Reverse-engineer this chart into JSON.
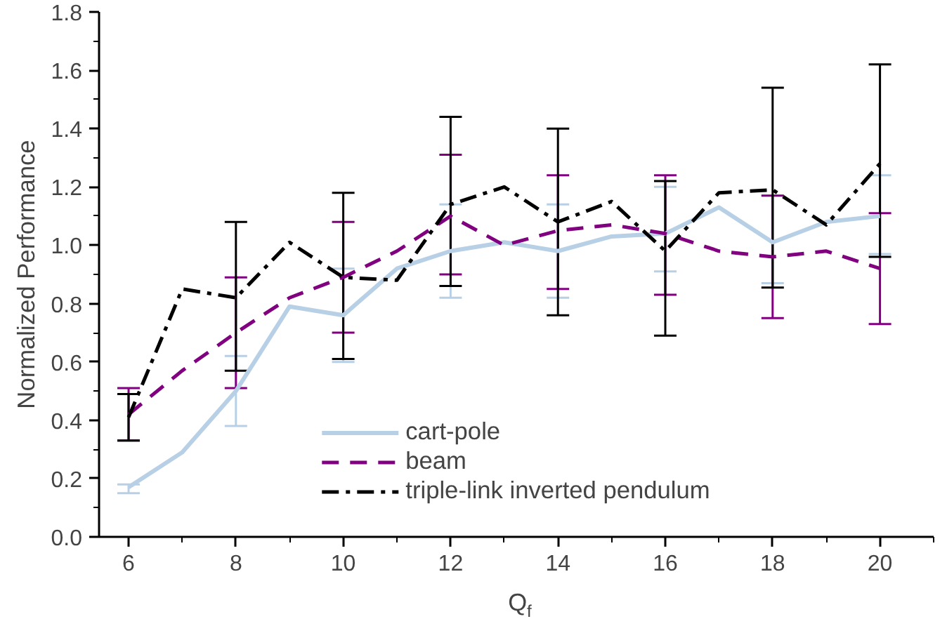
{
  "chart_data": {
    "type": "line",
    "xlabel": "Q$_{f}$",
    "ylabel": "Normalized Performance",
    "x": [
      6,
      7,
      8,
      9,
      10,
      11,
      12,
      13,
      14,
      15,
      16,
      17,
      18,
      19,
      20
    ],
    "xlim": [
      5.45,
      21.0
    ],
    "xticks": [
      6,
      8,
      10,
      12,
      14,
      16,
      18,
      20
    ],
    "ylim": [
      0,
      1.8
    ],
    "yticks": [
      {
        "value": 0,
        "label": "0.0"
      },
      {
        "value": 0.2,
        "label": "0.2"
      },
      {
        "value": 0.4,
        "label": "0.4"
      },
      {
        "value": 0.6,
        "label": "0.6"
      },
      {
        "value": 0.8,
        "label": "0.8"
      },
      {
        "value": 1.0,
        "label": "1.0"
      },
      {
        "value": 1.2,
        "label": "1.2"
      },
      {
        "value": 1.4,
        "label": "1.4"
      },
      {
        "value": 1.6,
        "label": "1.6"
      },
      {
        "value": 1.8,
        "label": "1.8"
      }
    ],
    "legend": "bottom",
    "grid": false,
    "series": [
      {
        "name": "cart-pole",
        "color": "#b8d0e6",
        "line_style": "solid",
        "values": [
          0.17,
          0.29,
          0.5,
          0.79,
          0.76,
          0.92,
          0.98,
          1.01,
          0.98,
          1.03,
          1.04,
          1.13,
          1.01,
          1.08,
          1.1
        ],
        "errors": [
          [
            0.15,
            0.18
          ],
          null,
          [
            0.38,
            0.62
          ],
          null,
          [
            0.6,
            0.92
          ],
          null,
          [
            0.82,
            1.14
          ],
          null,
          [
            0.82,
            1.14
          ],
          null,
          [
            0.91,
            1.2
          ],
          null,
          [
            0.87,
            1.17
          ],
          null,
          [
            0.97,
            1.24
          ]
        ]
      },
      {
        "name": "beam",
        "color": "#800080",
        "line_style": "dashed",
        "values": [
          0.42,
          0.57,
          0.7,
          0.82,
          0.89,
          0.98,
          1.1,
          1.0,
          1.05,
          1.07,
          1.04,
          0.98,
          0.96,
          0.98,
          0.92
        ],
        "errors": [
          [
            0.33,
            0.51
          ],
          null,
          [
            0.51,
            0.89
          ],
          null,
          [
            0.7,
            1.08
          ],
          null,
          [
            0.9,
            1.31
          ],
          null,
          [
            0.85,
            1.24
          ],
          null,
          [
            0.83,
            1.24
          ],
          null,
          [
            0.75,
            1.17
          ],
          null,
          [
            0.73,
            1.11
          ]
        ]
      },
      {
        "name": "triple-link inverted pendulum",
        "color": "#000000",
        "line_style": "dashdot",
        "values": [
          0.41,
          0.85,
          0.82,
          1.01,
          0.89,
          0.88,
          1.14,
          1.2,
          1.08,
          1.15,
          0.98,
          1.18,
          1.19,
          1.07,
          1.28
        ],
        "errors": [
          [
            0.33,
            0.49
          ],
          null,
          [
            0.57,
            1.08
          ],
          null,
          [
            0.61,
            1.18
          ],
          null,
          [
            0.86,
            1.44
          ],
          null,
          [
            0.76,
            1.4
          ],
          null,
          [
            0.69,
            1.22
          ],
          null,
          [
            0.855,
            1.54
          ],
          null,
          [
            0.96,
            1.62
          ]
        ]
      }
    ]
  }
}
